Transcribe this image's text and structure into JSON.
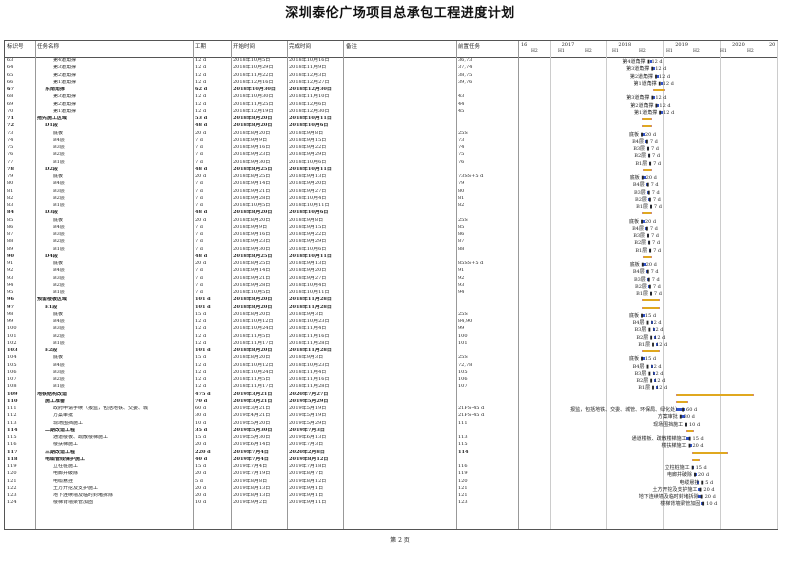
{
  "title": "深圳泰伦广场项目总承包工程进度计划",
  "headers": {
    "id": "标识号",
    "name": "任务名称",
    "duration": "工期",
    "start": "开始时间",
    "end": "完成时间",
    "note": "备注",
    "pred": "前置任务"
  },
  "timeline": {
    "years": [
      "16",
      "2017",
      "2018",
      "2019",
      "2020",
      "20"
    ],
    "halves": [
      "H2",
      "H1",
      "H2",
      "H1",
      "H2",
      "H1",
      "H2",
      "H1",
      "H2"
    ]
  },
  "rows": [
    {
      "id": "63",
      "name": "第4道角撑",
      "dur": "12 d",
      "start": "2018年10月5日",
      "end": "2018年10月16日",
      "pred": "36,73",
      "label": "第4道角撑 ▮ 12 d",
      "summary": false,
      "indent": 2
    },
    {
      "id": "64",
      "name": "第3道角撑",
      "dur": "12 d",
      "start": "2018年10月29日",
      "end": "2018年11月9日",
      "pred": "37,74",
      "label": "第3道角撑 ▮ 12 d",
      "summary": false,
      "indent": 2
    },
    {
      "id": "65",
      "name": "第2道角撑",
      "dur": "12 d",
      "start": "2018年11月22日",
      "end": "2018年12月3日",
      "pred": "38,75",
      "label": "第2道角撑 ▮ 12 d",
      "summary": false,
      "indent": 2
    },
    {
      "id": "66",
      "name": "第1道角撑",
      "dur": "12 d",
      "start": "2018年12月16日",
      "end": "2018年12月27日",
      "pred": "39,76",
      "label": "第1道角撑 ▮ 12 d",
      "summary": false,
      "indent": 2
    },
    {
      "id": "67",
      "name": "东南角撑",
      "dur": "62 d",
      "start": "2018年10月30日",
      "end": "2018年12月30日",
      "pred": "",
      "label": "",
      "summary": true,
      "indent": 1
    },
    {
      "id": "68",
      "name": "第3道角撑",
      "dur": "12 d",
      "start": "2018年10月30日",
      "end": "2018年11月10日",
      "pred": "43",
      "label": "第3道角撑 ▮ 12 d",
      "summary": false,
      "indent": 2
    },
    {
      "id": "69",
      "name": "第2道角撑",
      "dur": "12 d",
      "start": "2018年11月25日",
      "end": "2018年12月6日",
      "pred": "44",
      "label": "第2道角撑 ▮ 12 d",
      "summary": false,
      "indent": 2
    },
    {
      "id": "70",
      "name": "第1道角撑",
      "dur": "12 d",
      "start": "2018年12月19日",
      "end": "2018年12月30日",
      "pred": "45",
      "label": "第1道角撑 ▮ 12 d",
      "summary": false,
      "indent": 2
    },
    {
      "id": "71",
      "name": "拖先施工区域",
      "dur": "53 d",
      "start": "2018年8月20日",
      "end": "2018年10月11日",
      "pred": "",
      "label": "",
      "summary": true,
      "indent": 0
    },
    {
      "id": "72",
      "name": "D1段",
      "dur": "48 d",
      "start": "2018年8月20日",
      "end": "2018年10月6日",
      "pred": "",
      "label": "",
      "summary": true,
      "indent": 1
    },
    {
      "id": "73",
      "name": "底板",
      "dur": "20 d",
      "start": "2018年8月20日",
      "end": "2018年9月8日",
      "pred": "25S",
      "label": "底板 ▮ 20 d",
      "summary": false,
      "indent": 2
    },
    {
      "id": "74",
      "name": "B4层",
      "dur": "7 d",
      "start": "2018年9月9日",
      "end": "2018年9月15日",
      "pred": "73",
      "label": "B4层 ▮ 7 d",
      "summary": false,
      "indent": 2
    },
    {
      "id": "75",
      "name": "B3层",
      "dur": "7 d",
      "start": "2018年9月16日",
      "end": "2018年9月22日",
      "pred": "74",
      "label": "B3层 ▮ 7 d",
      "summary": false,
      "indent": 2
    },
    {
      "id": "76",
      "name": "B2层",
      "dur": "7 d",
      "start": "2018年9月23日",
      "end": "2018年9月29日",
      "pred": "75",
      "label": "B2层 ▮ 7 d",
      "summary": false,
      "indent": 2
    },
    {
      "id": "77",
      "name": "B1层",
      "dur": "7 d",
      "start": "2018年9月30日",
      "end": "2018年10月6日",
      "pred": "76",
      "label": "B1层 ▮ 7 d",
      "summary": false,
      "indent": 2
    },
    {
      "id": "78",
      "name": "D2段",
      "dur": "48 d",
      "start": "2018年8月25日",
      "end": "2018年10月11日",
      "pred": "",
      "label": "",
      "summary": true,
      "indent": 1
    },
    {
      "id": "79",
      "name": "底板",
      "dur": "20 d",
      "start": "2018年8月25日",
      "end": "2018年9月13日",
      "pred": "73SS+5 d",
      "label": "底板 ▮ 20 d",
      "summary": false,
      "indent": 2
    },
    {
      "id": "80",
      "name": "B4层",
      "dur": "7 d",
      "start": "2018年9月14日",
      "end": "2018年9月20日",
      "pred": "79",
      "label": "B4层 ▮ 7 d",
      "summary": false,
      "indent": 2
    },
    {
      "id": "81",
      "name": "B3层",
      "dur": "7 d",
      "start": "2018年9月21日",
      "end": "2018年9月27日",
      "pred": "80",
      "label": "B3层 ▮ 7 d",
      "summary": false,
      "indent": 2
    },
    {
      "id": "82",
      "name": "B2层",
      "dur": "7 d",
      "start": "2018年9月28日",
      "end": "2018年10月4日",
      "pred": "81",
      "label": "B2层 ▮ 7 d",
      "summary": false,
      "indent": 2
    },
    {
      "id": "83",
      "name": "B1层",
      "dur": "7 d",
      "start": "2018年10月5日",
      "end": "2018年10月11日",
      "pred": "82",
      "label": "B1层 ▮ 7 d",
      "summary": false,
      "indent": 2
    },
    {
      "id": "84",
      "name": "D3段",
      "dur": "48 d",
      "start": "2018年8月20日",
      "end": "2018年10月6日",
      "pred": "",
      "label": "",
      "summary": true,
      "indent": 1
    },
    {
      "id": "85",
      "name": "底板",
      "dur": "20 d",
      "start": "2018年8月20日",
      "end": "2018年9月8日",
      "pred": "25S",
      "label": "底板 ▮ 20 d",
      "summary": false,
      "indent": 2
    },
    {
      "id": "86",
      "name": "B4层",
      "dur": "7 d",
      "start": "2018年9月9日",
      "end": "2018年9月15日",
      "pred": "85",
      "label": "B4层 ▮ 7 d",
      "summary": false,
      "indent": 2
    },
    {
      "id": "87",
      "name": "B3层",
      "dur": "7 d",
      "start": "2018年9月16日",
      "end": "2018年9月22日",
      "pred": "86",
      "label": "B3层 ▮ 7 d",
      "summary": false,
      "indent": 2
    },
    {
      "id": "88",
      "name": "B2层",
      "dur": "7 d",
      "start": "2018年9月23日",
      "end": "2018年9月29日",
      "pred": "87",
      "label": "B2层 ▮ 7 d",
      "summary": false,
      "indent": 2
    },
    {
      "id": "89",
      "name": "B1层",
      "dur": "7 d",
      "start": "2018年9月30日",
      "end": "2018年10月6日",
      "pred": "88",
      "label": "B1层 ▮ 7 d",
      "summary": false,
      "indent": 2
    },
    {
      "id": "90",
      "name": "D4段",
      "dur": "48 d",
      "start": "2018年8月25日",
      "end": "2018年10月11日",
      "pred": "",
      "label": "",
      "summary": true,
      "indent": 1
    },
    {
      "id": "91",
      "name": "底板",
      "dur": "20 d",
      "start": "2018年8月25日",
      "end": "2018年9月13日",
      "pred": "85SS+5 d",
      "label": "底板 ▮ 20 d",
      "summary": false,
      "indent": 2
    },
    {
      "id": "92",
      "name": "B4层",
      "dur": "7 d",
      "start": "2018年9月14日",
      "end": "2018年9月20日",
      "pred": "91",
      "label": "B4层 ▮ 7 d",
      "summary": false,
      "indent": 2
    },
    {
      "id": "93",
      "name": "B3层",
      "dur": "7 d",
      "start": "2018年9月21日",
      "end": "2018年9月27日",
      "pred": "92",
      "label": "B3层 ▮ 7 d",
      "summary": false,
      "indent": 2
    },
    {
      "id": "94",
      "name": "B2层",
      "dur": "7 d",
      "start": "2018年9月28日",
      "end": "2018年10月4日",
      "pred": "93",
      "label": "B2层 ▮ 7 d",
      "summary": false,
      "indent": 2
    },
    {
      "id": "95",
      "name": "B1层",
      "dur": "7 d",
      "start": "2018年10月5日",
      "end": "2018年10月11日",
      "pred": "94",
      "label": "B1层 ▮ 7 d",
      "summary": false,
      "indent": 2
    },
    {
      "id": "96",
      "name": "预留楼板区域",
      "dur": "101 d",
      "start": "2018年8月20日",
      "end": "2018年11月28日",
      "pred": "",
      "label": "",
      "summary": true,
      "indent": 0
    },
    {
      "id": "97",
      "name": "E1段",
      "dur": "101 d",
      "start": "2018年8月20日",
      "end": "2018年11月28日",
      "pred": "",
      "label": "",
      "summary": true,
      "indent": 1
    },
    {
      "id": "98",
      "name": "底板",
      "dur": "15 d",
      "start": "2018年8月20日",
      "end": "2018年9月3日",
      "pred": "25S",
      "label": "底板 ▮ 15 d",
      "summary": false,
      "indent": 2
    },
    {
      "id": "99",
      "name": "B4层",
      "dur": "12 d",
      "start": "2018年10月12日",
      "end": "2018年10月23日",
      "pred": "84,90",
      "label": "B4层 ▮ 12 d",
      "summary": false,
      "indent": 2
    },
    {
      "id": "100",
      "name": "B3层",
      "dur": "12 d",
      "start": "2018年10月24日",
      "end": "2018年11月4日",
      "pred": "99",
      "label": "B3层 ▮ 12 d",
      "summary": false,
      "indent": 2
    },
    {
      "id": "101",
      "name": "B2层",
      "dur": "12 d",
      "start": "2018年11月5日",
      "end": "2018年11月16日",
      "pred": "100",
      "label": "B2层 ▮ 12 d",
      "summary": false,
      "indent": 2
    },
    {
      "id": "102",
      "name": "B1层",
      "dur": "12 d",
      "start": "2018年11月17日",
      "end": "2018年11月28日",
      "pred": "101",
      "label": "B1层 ▮ 12 d",
      "summary": false,
      "indent": 2
    },
    {
      "id": "103",
      "name": "E2段",
      "dur": "101 d",
      "start": "2018年8月20日",
      "end": "2018年11月28日",
      "pred": "",
      "label": "",
      "summary": true,
      "indent": 1
    },
    {
      "id": "104",
      "name": "底板",
      "dur": "15 d",
      "start": "2018年8月20日",
      "end": "2018年9月3日",
      "pred": "25S",
      "label": "底板 ▮ 15 d",
      "summary": false,
      "indent": 2
    },
    {
      "id": "105",
      "name": "B4层",
      "dur": "12 d",
      "start": "2018年10月12日",
      "end": "2018年10月23日",
      "pred": "72,78",
      "label": "B4层 ▮ 12 d",
      "summary": false,
      "indent": 2
    },
    {
      "id": "106",
      "name": "B3层",
      "dur": "12 d",
      "start": "2018年10月24日",
      "end": "2018年11月4日",
      "pred": "105",
      "label": "B3层 ▮ 12 d",
      "summary": false,
      "indent": 2
    },
    {
      "id": "107",
      "name": "B2层",
      "dur": "12 d",
      "start": "2018年11月5日",
      "end": "2018年11月16日",
      "pred": "106",
      "label": "B2层 ▮ 12 d",
      "summary": false,
      "indent": 2
    },
    {
      "id": "108",
      "name": "B1层",
      "dur": "12 d",
      "start": "2018年11月17日",
      "end": "2018年11月28日",
      "pred": "107",
      "label": "B1层 ▮ 12 d",
      "summary": false,
      "indent": 2
    },
    {
      "id": "109",
      "name": "地铁结构改造",
      "dur": "475 d",
      "start": "2019年3月21日",
      "end": "2020年7月27日",
      "pred": "",
      "label": "",
      "summary": true,
      "indent": 0
    },
    {
      "id": "110",
      "name": "施工准备",
      "dur": "70 d",
      "start": "2019年3月21日",
      "end": "2019年5月29日",
      "pred": "",
      "label": "",
      "summary": true,
      "indent": 1
    },
    {
      "id": "111",
      "name": "政府申请手续（报监，包括地铁、交委、城",
      "dur": "60 d",
      "start": "2019年3月21日",
      "end": "2019年5月19日",
      "pred": "21FS-45 d",
      "label": "报监，包括地铁、交委、城管、环保局、绿化处） ▮ 60 d",
      "summary": false,
      "indent": 2
    },
    {
      "id": "112",
      "name": "方案审批",
      "dur": "30 d",
      "start": "2019年4月21日",
      "end": "2019年5月19日",
      "pred": "21FS-45 d",
      "label": "方案审批 ▮ 30 d",
      "summary": false,
      "indent": 2
    },
    {
      "id": "113",
      "name": "现场围挡施工",
      "dur": "10 d",
      "start": "2019年5月20日",
      "end": "2019年5月29日",
      "pred": "111",
      "label": "现场围挡施工 ▮ 10 d",
      "summary": false,
      "indent": 2
    },
    {
      "id": "114",
      "name": "二期改造工程",
      "dur": "35 d",
      "start": "2019年5月30日",
      "end": "2019年7月3日",
      "pred": "",
      "label": "",
      "summary": true,
      "indent": 1
    },
    {
      "id": "115",
      "name": "通道楼板、疏散楼梯施工",
      "dur": "15 d",
      "start": "2019年5月30日",
      "end": "2019年6月13日",
      "pred": "113",
      "label": "通道楼板、疏散楼梯施工 ▮ 15 d",
      "summary": false,
      "indent": 2
    },
    {
      "id": "116",
      "name": "楼扶梯施工",
      "dur": "20 d",
      "start": "2019年6月14日",
      "end": "2019年7月3日",
      "pred": "115",
      "label": "楼扶梯施工 ▮ 20 d",
      "summary": false,
      "indent": 2
    },
    {
      "id": "117",
      "name": "三期改造工程",
      "dur": "220 d",
      "start": "2019年7月4日",
      "end": "2020年2月8日",
      "pred": "114",
      "label": "",
      "summary": true,
      "indent": 1
    },
    {
      "id": "118",
      "name": "电缆管线保护施工",
      "dur": "40 d",
      "start": "2019年7月4日",
      "end": "2019年8月12日",
      "pred": "",
      "label": "",
      "summary": true,
      "indent": 1
    },
    {
      "id": "119",
      "name": "立柱桩施工",
      "dur": "15 d",
      "start": "2019年7月4日",
      "end": "2019年7月18日",
      "pred": "116",
      "label": "立柱桩施工 ▮ 15 d",
      "summary": false,
      "indent": 2
    },
    {
      "id": "120",
      "name": "电廊井破除",
      "dur": "20 d",
      "start": "2019年7月19日",
      "end": "2019年8月7日",
      "pred": "119",
      "label": "电廊井破除 ▮ 20 d",
      "summary": false,
      "indent": 2
    },
    {
      "id": "121",
      "name": "电缆悬挂",
      "dur": "5 d",
      "start": "2019年8月8日",
      "end": "2019年8月12日",
      "pred": "120",
      "label": "电缆悬挂 ▮ 5 d",
      "summary": false,
      "indent": 2
    },
    {
      "id": "122",
      "name": "土方开挖及支护施工",
      "dur": "20 d",
      "start": "2019年8月13日",
      "end": "2019年9月1日",
      "pred": "121",
      "label": "土方开挖及支护施工 ▮ 20 d",
      "summary": false,
      "indent": 2
    },
    {
      "id": "123",
      "name": "地下连续墙及临时封堵拆除",
      "dur": "20 d",
      "start": "2019年8月13日",
      "end": "2019年9月1日",
      "pred": "121",
      "label": "地下连续墙及临时封堵拆除 ▮ 20 d",
      "summary": false,
      "indent": 2
    },
    {
      "id": "124",
      "name": "楼梯背墙梁管加固",
      "dur": "10 d",
      "start": "2019年9月2日",
      "end": "2019年9月11日",
      "pred": "123",
      "label": "楼梯背墙梁管加固 ▮ 10 d",
      "summary": false,
      "indent": 2
    }
  ],
  "footer": "第 2 页",
  "colors": {
    "bar": "#3355cc",
    "summary": "#e0a81f"
  }
}
